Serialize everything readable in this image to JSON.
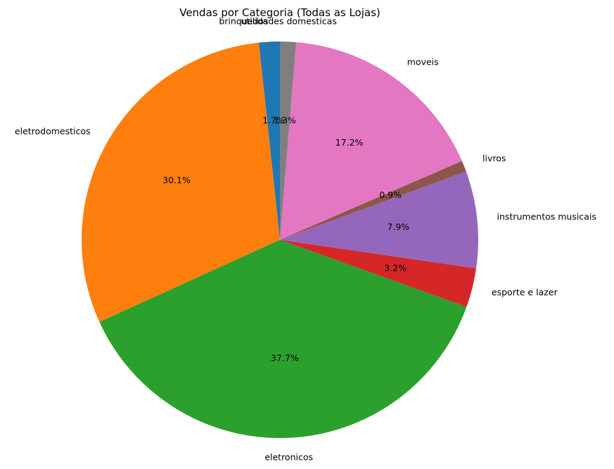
{
  "chart_data": {
    "type": "pie",
    "title": "Vendas por Categoria (Todas as Lojas)",
    "start_angle_deg": 90,
    "direction": "counterclockwise",
    "slices": [
      {
        "label": "brinquedos",
        "value": 1.7,
        "pct_label": "1.7%",
        "color": "#1f77b4"
      },
      {
        "label": "eletrodomesticos",
        "value": 30.1,
        "pct_label": "30.1%",
        "color": "#ff7f0e"
      },
      {
        "label": "eletronicos",
        "value": 37.7,
        "pct_label": "37.7%",
        "color": "#2ca02c"
      },
      {
        "label": "esporte e lazer",
        "value": 3.2,
        "pct_label": "3.2%",
        "color": "#d62728"
      },
      {
        "label": "instrumentos musicais",
        "value": 7.9,
        "pct_label": "7.9%",
        "color": "#9467bd"
      },
      {
        "label": "livros",
        "value": 0.9,
        "pct_label": "0.9%",
        "color": "#8c564b"
      },
      {
        "label": "moveis",
        "value": 17.2,
        "pct_label": "17.2%",
        "color": "#e377c2"
      },
      {
        "label": "utilidades domesticas",
        "value": 1.3,
        "pct_label": "1.3%",
        "color": "#7f7f7f"
      }
    ]
  }
}
